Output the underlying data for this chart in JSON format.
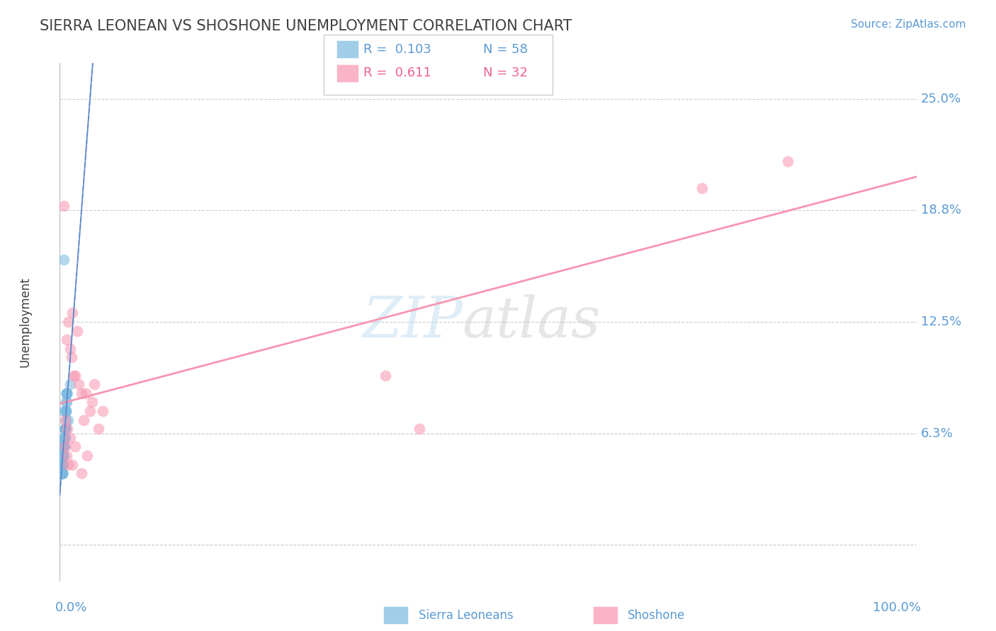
{
  "title": "SIERRA LEONEAN VS SHOSHONE UNEMPLOYMENT CORRELATION CHART",
  "source_text": "Source: ZipAtlas.com",
  "ylabel": "Unemployment",
  "xlim": [
    0.0,
    100.0
  ],
  "ylim": [
    -0.02,
    0.27
  ],
  "yticks": [
    0.0,
    0.0625,
    0.125,
    0.1875,
    0.25
  ],
  "ytick_labels": [
    "",
    "6.3%",
    "12.5%",
    "18.8%",
    "25.0%"
  ],
  "background_color": "#ffffff",
  "grid_color": "#cccccc",
  "title_color": "#404040",
  "tick_label_color": "#5b9bd5",
  "watermark_zip_color": "#b8d8ee",
  "watermark_atlas_color": "#c8c8c8",
  "sierra_leonean_color": "#7ab8e0",
  "shoshone_color": "#f895b0",
  "trend_blue_color": "#a8c8e0",
  "trend_pink_color": "#f895b0",
  "legend_blue_color": "#7ab8e0",
  "legend_pink_color": "#f895b0",
  "legend_text_blue": "#5b9bd5",
  "legend_text_pink": "#f06090",
  "sierra_leonean_x": [
    0.5,
    1.0,
    1.2,
    0.8,
    0.6,
    0.3,
    0.4,
    0.7,
    0.5,
    0.6,
    0.2,
    0.4,
    0.3,
    0.5,
    0.6,
    0.7,
    0.8,
    0.3,
    0.4,
    0.5,
    0.6,
    0.2,
    0.3,
    0.5,
    0.7,
    0.4,
    0.3,
    0.6,
    0.5,
    0.4,
    0.8,
    0.3,
    0.5,
    0.6,
    0.4,
    0.3,
    0.7,
    0.5,
    0.6,
    0.4,
    0.3,
    0.5,
    0.8,
    0.6,
    0.4,
    0.5,
    0.3,
    0.6,
    0.4,
    0.5,
    0.3,
    0.7,
    0.5,
    0.6,
    0.4,
    0.3,
    0.8,
    0.5
  ],
  "sierra_leonean_y": [
    0.16,
    0.07,
    0.09,
    0.085,
    0.06,
    0.055,
    0.05,
    0.08,
    0.075,
    0.065,
    0.04,
    0.045,
    0.05,
    0.055,
    0.06,
    0.075,
    0.08,
    0.045,
    0.05,
    0.055,
    0.065,
    0.04,
    0.045,
    0.06,
    0.07,
    0.05,
    0.045,
    0.065,
    0.055,
    0.05,
    0.085,
    0.04,
    0.055,
    0.065,
    0.05,
    0.045,
    0.075,
    0.06,
    0.065,
    0.05,
    0.04,
    0.055,
    0.085,
    0.065,
    0.05,
    0.055,
    0.04,
    0.065,
    0.05,
    0.055,
    0.04,
    0.075,
    0.055,
    0.065,
    0.05,
    0.04,
    0.085,
    0.055
  ],
  "shoshone_x": [
    0.5,
    1.5,
    0.8,
    1.0,
    1.2,
    2.0,
    2.5,
    1.8,
    0.6,
    0.9,
    2.2,
    1.4,
    1.6,
    3.0,
    3.5,
    4.0,
    3.8,
    2.8,
    4.5,
    5.0,
    0.6,
    0.8,
    1.0,
    1.2,
    1.5,
    1.8,
    2.5,
    3.2,
    85.0,
    75.0,
    42.0,
    38.0
  ],
  "shoshone_y": [
    0.19,
    0.13,
    0.115,
    0.125,
    0.11,
    0.12,
    0.085,
    0.095,
    0.07,
    0.065,
    0.09,
    0.105,
    0.095,
    0.085,
    0.075,
    0.09,
    0.08,
    0.07,
    0.065,
    0.075,
    0.055,
    0.05,
    0.045,
    0.06,
    0.045,
    0.055,
    0.04,
    0.05,
    0.215,
    0.2,
    0.065,
    0.095
  ],
  "sl_trend_x0": 0.0,
  "sl_trend_x1": 100.0,
  "sl_trend_y0": 0.057,
  "sl_trend_y1": 0.245,
  "sh_trend_x0": 0.0,
  "sh_trend_x1": 100.0,
  "sh_trend_y0": 0.048,
  "sh_trend_y1": 0.215
}
